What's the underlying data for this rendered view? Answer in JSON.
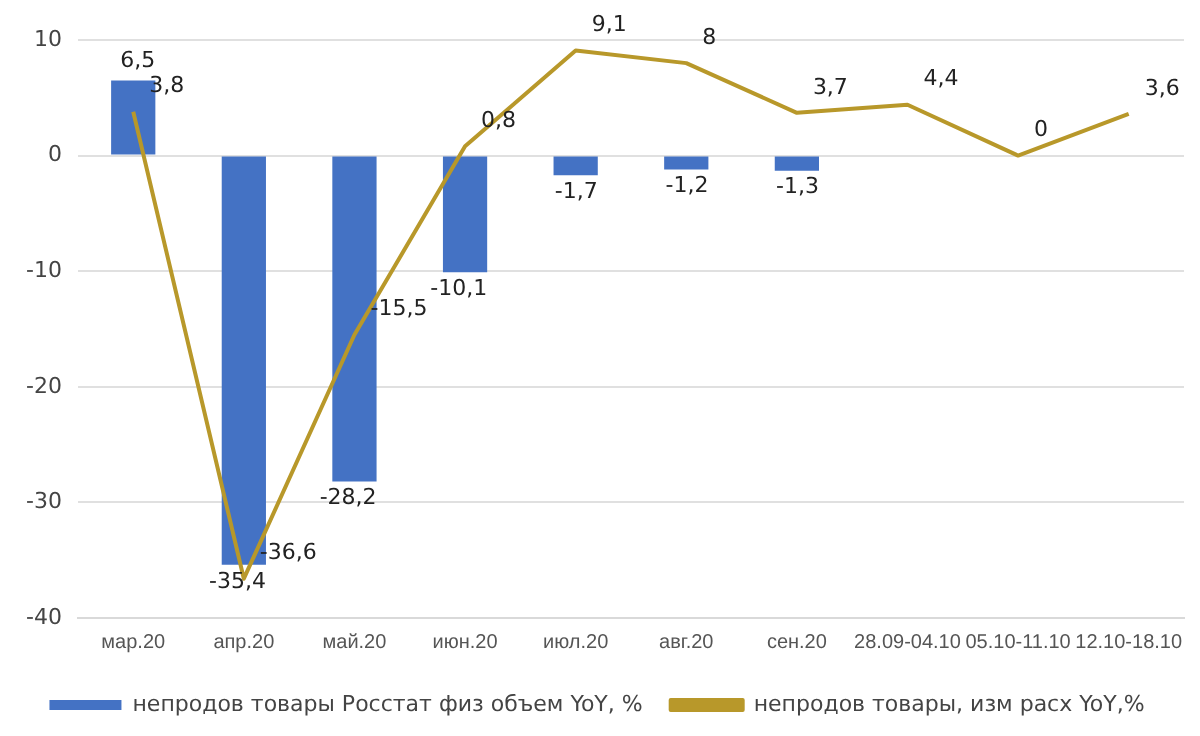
{
  "chart_data": {
    "type": "bar",
    "categories": [
      "мар.20",
      "апр.20",
      "май.20",
      "июн.20",
      "июл.20",
      "авг.20",
      "сен.20",
      "28.09-04.10",
      "05.10-11.10",
      "12.10-18.10"
    ],
    "series": [
      {
        "name": "непродов товары Росстат физ объем YoY, %",
        "color": "#4472c4",
        "values": [
          6.5,
          -35.4,
          -28.2,
          -10.1,
          -1.7,
          -1.2,
          -1.3,
          null,
          null,
          null
        ],
        "value_labels": [
          "6,5",
          "-35,4",
          "-28,2",
          "-10,1",
          "-1,7",
          "-1,2",
          "-1,3",
          null,
          null,
          null
        ]
      },
      {
        "type": "line",
        "name": "непродов товары, изм расх YoY,%",
        "color": "#b8982a",
        "values": [
          3.8,
          -36.6,
          -15.5,
          0.8,
          9.1,
          8,
          3.7,
          4.4,
          0,
          3.6
        ],
        "value_labels": [
          "3,8",
          "-36,6",
          "-15,5",
          "0,8",
          "9,1",
          "8",
          "3,7",
          "4,4",
          "0",
          "3,6"
        ]
      }
    ],
    "ylim": [
      -40,
      10
    ],
    "yticks": [
      -40,
      -30,
      -20,
      -10,
      0,
      10
    ],
    "grid": "y",
    "legend": "bottom",
    "marker": "none",
    "line_style": "solid"
  }
}
